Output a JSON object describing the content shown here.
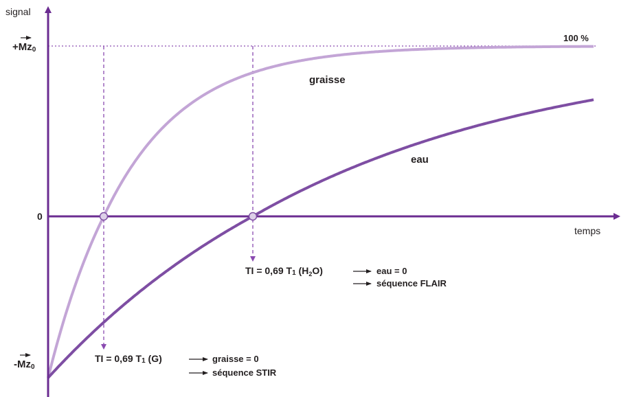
{
  "colors": {
    "axis": "#6b2c91",
    "curve_graisse": "#c3a5d6",
    "curve_eau": "#7e4ea3",
    "guide": "#8a4ab0",
    "marker_fill": "#ddd0e8",
    "text": "#231f20"
  },
  "axes": {
    "y_label": "signal",
    "x_label": "temps",
    "y_top_prefix": "+",
    "y_bottom_prefix": "-",
    "magnetization_symbol": "Mz",
    "magnetization_subscript": "0",
    "zero_label": "0",
    "hundred_percent": "100 %"
  },
  "curves": {
    "graisse_label": "graisse",
    "eau_label": "eau"
  },
  "annotations": {
    "flair": {
      "ti_prefix": "TI = 0,69 T",
      "ti_sub": "1",
      "ti_suffix_a": " (H",
      "ti_suffix_sub": "2",
      "ti_suffix_b": "O)",
      "result": "eau = 0",
      "sequence": "séquence FLAIR"
    },
    "stir": {
      "ti_prefix": "TI = 0,69 T",
      "ti_sub": "1",
      "ti_suffix": " (G)",
      "result": "graisse = 0",
      "sequence": "séquence STIR"
    }
  },
  "chart_data": {
    "type": "line",
    "xlabel": "temps",
    "ylabel": "signal",
    "model": "inversion recovery: Mz(t) = Mz0 (1 - 2 e^(-t/T1))",
    "series": [
      {
        "name": "graisse",
        "T1_relative": 1.0
      },
      {
        "name": "eau",
        "T1_relative": 3.1
      }
    ],
    "null_points": [
      {
        "series": "graisse",
        "TI": "0,69 T1 (G)"
      },
      {
        "series": "eau",
        "TI": "0,69 T1 (H2O)"
      }
    ],
    "ylim_labels": [
      "-Mz0",
      "0",
      "+Mz0"
    ],
    "reference_line": "100 %"
  }
}
